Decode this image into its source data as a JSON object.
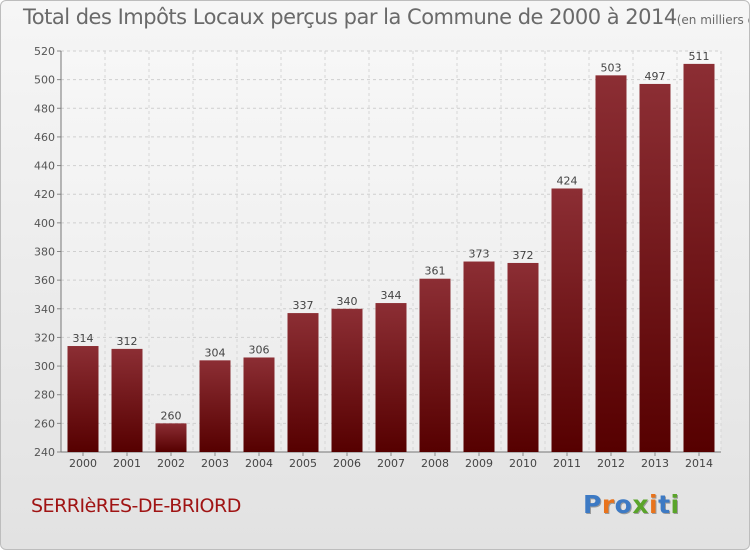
{
  "title": {
    "main": "Total des Impôts Locaux perçus par la Commune de 2000 à 2014",
    "unit": "(en milliers d'€)"
  },
  "commune": "SERRIèRES-DE-BRIORD",
  "logo": {
    "text": "Proxiti",
    "letters": [
      "P",
      "r",
      "o",
      "x",
      "i",
      "t",
      "i"
    ]
  },
  "colors": {
    "bar_top": "#8c2e34",
    "bar_bottom": "#560000",
    "commune_text": "#a01414",
    "logo_letters": [
      "#3d7ac4",
      "#e8731c",
      "#3d7ac4",
      "#5aa42a",
      "#e8731c",
      "#3d7ac4",
      "#5aa42a"
    ]
  },
  "chart_data": {
    "type": "bar",
    "title": "Total des Impôts Locaux perçus par la Commune de 2000 à 2014",
    "unit": "en milliers d'€",
    "categories": [
      "2000",
      "2001",
      "2002",
      "2003",
      "2004",
      "2005",
      "2006",
      "2007",
      "2008",
      "2009",
      "2010",
      "2011",
      "2012",
      "2013",
      "2014"
    ],
    "values": [
      314,
      312,
      260,
      304,
      306,
      337,
      340,
      344,
      361,
      373,
      372,
      424,
      503,
      497,
      511
    ],
    "ylim": [
      240,
      520
    ],
    "yticks": [
      240,
      260,
      280,
      300,
      320,
      340,
      360,
      380,
      400,
      420,
      440,
      460,
      480,
      500,
      520
    ],
    "xlabel": "",
    "ylabel": "",
    "grid": true,
    "legend": "none"
  }
}
